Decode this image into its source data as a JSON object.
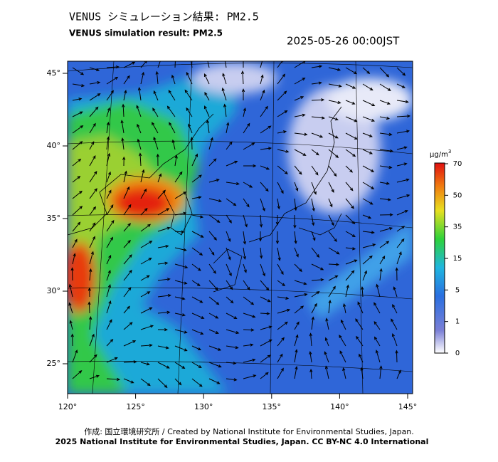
{
  "header": {
    "title": "VENUS シミュレーション結果: PM2.5",
    "subtitle": "VENUS simulation result: PM2.5",
    "datetime": "2025-05-26 00:00JST"
  },
  "map": {
    "lat_labels": [
      "45°",
      "40°",
      "35°",
      "30°",
      "25°"
    ],
    "lon_labels": [
      "120°",
      "125°",
      "130°",
      "135°",
      "140°",
      "145°"
    ]
  },
  "colorbar": {
    "unit": "μg/m",
    "unit_sup": "3",
    "labels": [
      "70",
      "50",
      "35",
      "15",
      "5",
      "1",
      "0"
    ]
  },
  "footer": {
    "credit": "作成: 国立環境研究所 / Created by National Institute for Environmental Studies, Japan.",
    "license": "2025 National Institute for Environmental Studies, Japan. CC BY-NC 4.0 International"
  }
}
